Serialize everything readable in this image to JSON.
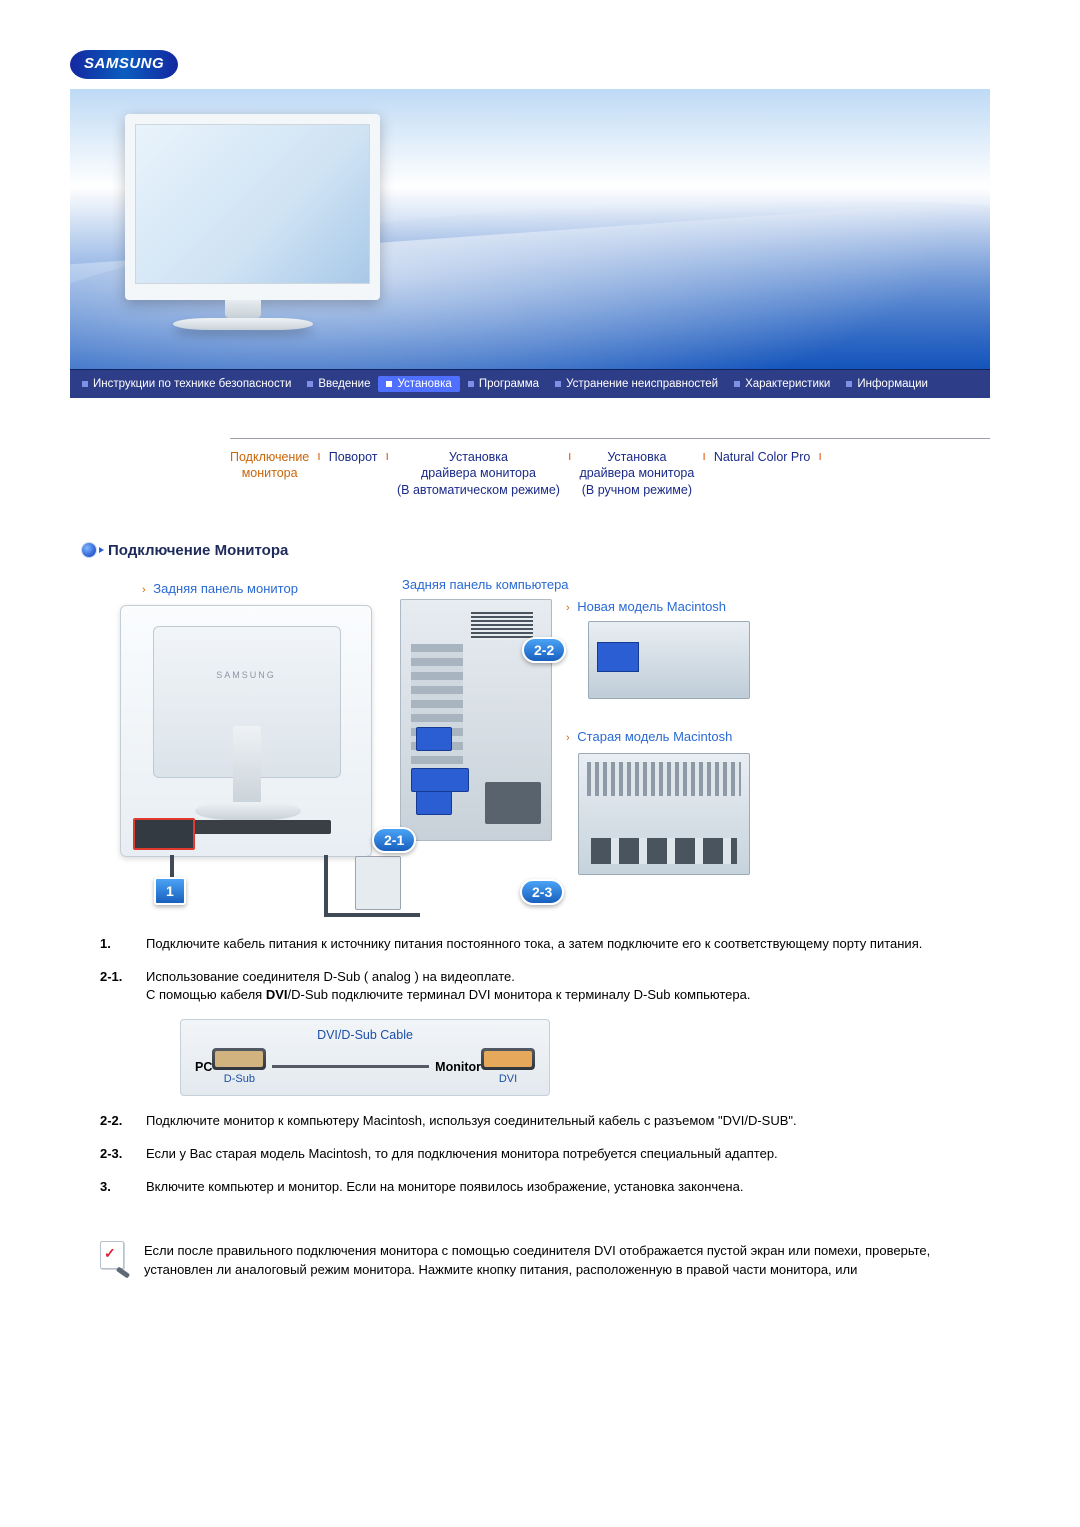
{
  "brand": "SAMSUNG",
  "nav": {
    "items": [
      "Инструкции по технике безопасности",
      "Введение",
      "Установка",
      "Программа",
      "Устранение неисправностей",
      "Характеристики",
      "Информации"
    ],
    "active_index": 2
  },
  "subnav": {
    "items": [
      {
        "line1": "Подключение",
        "line2": "монитора",
        "active": true
      },
      {
        "line1": "Поворот",
        "line2": "",
        "active": false
      },
      {
        "line1": "Установка",
        "line2": "драйвера монитора",
        "line3": "(В автоматическом режиме)",
        "active": false
      },
      {
        "line1": "Установка",
        "line2": "драйвера монитора",
        "line3": "(В ручном режиме)",
        "active": false
      },
      {
        "line1": "Natural Color Pro",
        "line2": "",
        "active": false
      }
    ]
  },
  "section_title": "Подключение Монитора",
  "diagram": {
    "label_monitor_back": "Задняя панель монитор",
    "label_pc_back": "Задняя панель компьютера",
    "label_mac_new": "Новая модель Macintosh",
    "label_mac_old": "Старая модель Macintosh",
    "monitor_brand": "SAMSUNG",
    "num_dc": "1",
    "num_21": "2-1",
    "num_22": "2-2",
    "num_23": "2-3"
  },
  "steps": [
    {
      "num": "1.",
      "text": "Подключите кабель питания к источнику питания постоянного тока, а затем подключите его к соответствующему порту питания."
    },
    {
      "num": "2-1.",
      "text": "Использование соединителя D-Sub ( analog ) на видеоплате.\nС помощью кабеля DVI/D-Sub подключите терминал DVI монитора к терминалу D-Sub компьютера."
    },
    {
      "num": "2-2.",
      "text": "Подключите монитор к компьютеру Macintosh, используя соединительный кабель с разъемом \"DVI/D-SUB\"."
    },
    {
      "num": "2-3.",
      "text": "Если у Вас старая модель Macintosh, то для подключения монитора потребуется специальный адаптер."
    },
    {
      "num": "3.",
      "text": "Включите компьютер и монитор. Если на мониторе появилось изображение, установка закончена."
    }
  ],
  "cable_box": {
    "title": "DVI/D-Sub Cable",
    "pc": "PC",
    "monitor": "Monitor",
    "left_label": "D-Sub",
    "right_label": "DVI"
  },
  "note": "Если после правильного подключения монитора с помощью соединителя DVI отображается пустой экран или помехи, проверьте, установлен ли аналоговый режим монитора. Нажмите кнопку питания, расположенную в правой части монитора, или",
  "colors": {
    "brand_blue": "#1428a0",
    "nav_bg": "#2e3d88",
    "nav_active": "#4e6fff",
    "link_orange": "#c9650b",
    "link_navy": "#1a2a88",
    "diagram_blue": "#2a6ad4",
    "pill_blue": "#185fbe",
    "red_outline": "#e13b2f"
  }
}
